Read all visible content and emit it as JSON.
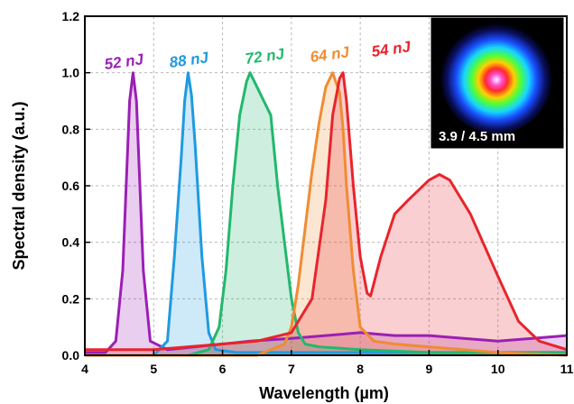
{
  "chart_data": {
    "type": "area",
    "title": "",
    "xlabel": "Wavelength (µm)",
    "ylabel": "Spectral density (a.u.)",
    "xlim": [
      4,
      11
    ],
    "ylim": [
      0,
      1.2
    ],
    "xticks": [
      "4",
      "5",
      "6",
      "7",
      "8",
      "9",
      "10",
      "11"
    ],
    "yticks": [
      "0.0",
      "0.2",
      "0.4",
      "0.6",
      "0.8",
      "1.0",
      "1.2"
    ],
    "grid": "dashed",
    "series": [
      {
        "label": "52 nJ",
        "color": "#9b1fb5",
        "x": [
          4.0,
          4.3,
          4.45,
          4.55,
          4.6,
          4.65,
          4.7,
          4.75,
          4.8,
          4.85,
          4.95,
          5.2,
          5.6,
          6.0,
          6.4,
          7.0,
          7.5,
          8.0,
          8.5,
          9.0,
          9.5,
          10.0,
          10.5,
          11.0
        ],
        "y": [
          0.01,
          0.01,
          0.05,
          0.3,
          0.6,
          0.9,
          1.0,
          0.9,
          0.6,
          0.3,
          0.05,
          0.02,
          0.03,
          0.04,
          0.05,
          0.06,
          0.07,
          0.08,
          0.07,
          0.07,
          0.06,
          0.05,
          0.06,
          0.07
        ]
      },
      {
        "label": "88 nJ",
        "color": "#1f9ae0",
        "x": [
          4.0,
          5.0,
          5.2,
          5.3,
          5.4,
          5.45,
          5.5,
          5.55,
          5.6,
          5.7,
          5.8,
          5.9,
          6.2,
          7.0,
          8.0,
          9.0,
          10.0,
          11.0
        ],
        "y": [
          0.0,
          0.0,
          0.05,
          0.35,
          0.7,
          0.9,
          1.0,
          0.92,
          0.75,
          0.35,
          0.08,
          0.02,
          0.01,
          0.01,
          0.01,
          0.01,
          0.01,
          0.01
        ]
      },
      {
        "label": "72 nJ",
        "color": "#22b86d",
        "x": [
          4.0,
          5.5,
          5.8,
          5.95,
          6.05,
          6.15,
          6.25,
          6.35,
          6.4,
          6.5,
          6.6,
          6.7,
          6.8,
          6.9,
          7.0,
          7.1,
          7.2,
          7.4,
          8.0,
          9.0,
          10.0,
          11.0
        ],
        "y": [
          0.0,
          0.0,
          0.02,
          0.1,
          0.3,
          0.6,
          0.85,
          0.97,
          1.0,
          0.95,
          0.9,
          0.85,
          0.6,
          0.4,
          0.2,
          0.08,
          0.04,
          0.03,
          0.02,
          0.01,
          0.01,
          0.01
        ]
      },
      {
        "label": "64 nJ",
        "color": "#ef8c33",
        "x": [
          4.0,
          6.5,
          6.9,
          7.0,
          7.1,
          7.2,
          7.3,
          7.4,
          7.5,
          7.6,
          7.7,
          7.75,
          7.8,
          7.9,
          8.0,
          8.2,
          8.5,
          9.0,
          10.0,
          11.0
        ],
        "y": [
          0.0,
          0.0,
          0.04,
          0.1,
          0.25,
          0.45,
          0.65,
          0.82,
          0.95,
          1.0,
          0.93,
          0.8,
          0.6,
          0.3,
          0.1,
          0.05,
          0.04,
          0.03,
          0.01,
          0.0
        ]
      },
      {
        "label": "54 nJ",
        "color": "#e8242c",
        "x": [
          4.0,
          5.0,
          6.0,
          6.5,
          7.0,
          7.3,
          7.5,
          7.6,
          7.7,
          7.75,
          7.8,
          7.9,
          8.0,
          8.1,
          8.15,
          8.3,
          8.5,
          8.7,
          9.0,
          9.15,
          9.3,
          9.6,
          10.0,
          10.3,
          10.6,
          11.0
        ],
        "y": [
          0.02,
          0.02,
          0.04,
          0.05,
          0.08,
          0.2,
          0.55,
          0.85,
          0.98,
          1.0,
          0.9,
          0.6,
          0.35,
          0.22,
          0.21,
          0.35,
          0.5,
          0.55,
          0.62,
          0.64,
          0.62,
          0.5,
          0.28,
          0.12,
          0.05,
          0.02
        ]
      }
    ],
    "inset": {
      "label": "3.9 / 4.5 mm"
    }
  }
}
